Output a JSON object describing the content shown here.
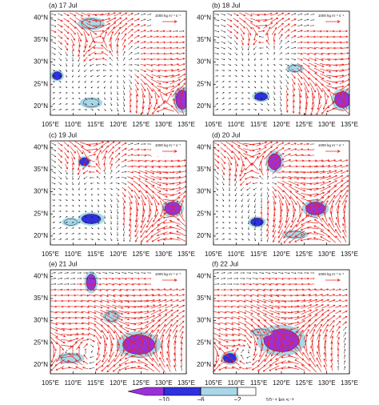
{
  "chart_data": [
    {
      "type": "vector-map",
      "title": "(a)  17 Jul",
      "reference_label": "1000 kg m⁻¹ s⁻¹",
      "xlim": [
        105,
        135
      ],
      "ylim": [
        18,
        41.5
      ],
      "xticks": [
        {
          "value": 105,
          "label": "105°E"
        },
        {
          "value": 110,
          "label": "110°E"
        },
        {
          "value": 115,
          "label": "115°E"
        },
        {
          "value": 120,
          "label": "120°E"
        },
        {
          "value": 125,
          "label": "125°E"
        },
        {
          "value": 130,
          "label": "130°E"
        },
        {
          "value": 135,
          "label": "135°E"
        }
      ],
      "yticks": [
        {
          "value": 20,
          "label": "20°N"
        },
        {
          "value": 25,
          "label": "25°N"
        },
        {
          "value": 30,
          "label": "30°N"
        },
        {
          "value": 35,
          "label": "35°N"
        },
        {
          "value": 40,
          "label": "40°N"
        }
      ]
    },
    {
      "type": "vector-map",
      "title": "(b)  18 Jul",
      "reference_label": "1000 kg m⁻¹ s⁻¹",
      "xlim": [
        105,
        135
      ],
      "ylim": [
        18,
        41.5
      ],
      "xticks": [
        {
          "value": 105,
          "label": "105°E"
        },
        {
          "value": 110,
          "label": "110°E"
        },
        {
          "value": 115,
          "label": "115°E"
        },
        {
          "value": 120,
          "label": "120°E"
        },
        {
          "value": 125,
          "label": "125°E"
        },
        {
          "value": 130,
          "label": "130°E"
        },
        {
          "value": 135,
          "label": "135°E"
        }
      ],
      "yticks": [
        {
          "value": 20,
          "label": "20°N"
        },
        {
          "value": 25,
          "label": "25°N"
        },
        {
          "value": 30,
          "label": "30°N"
        },
        {
          "value": 35,
          "label": "35°N"
        },
        {
          "value": 40,
          "label": "40°N"
        }
      ]
    },
    {
      "type": "vector-map",
      "title": "(c)  19 Jul",
      "reference_label": "1000 kg m⁻¹ s⁻¹",
      "xlim": [
        105,
        135
      ],
      "ylim": [
        18,
        41.5
      ],
      "xticks": [
        {
          "value": 105,
          "label": "105°E"
        },
        {
          "value": 110,
          "label": "110°E"
        },
        {
          "value": 115,
          "label": "115°E"
        },
        {
          "value": 120,
          "label": "120°E"
        },
        {
          "value": 125,
          "label": "125°E"
        },
        {
          "value": 130,
          "label": "130°E"
        },
        {
          "value": 135,
          "label": "135°E"
        }
      ],
      "yticks": [
        {
          "value": 20,
          "label": "20°N"
        },
        {
          "value": 25,
          "label": "25°N"
        },
        {
          "value": 30,
          "label": "30°N"
        },
        {
          "value": 35,
          "label": "35°N"
        },
        {
          "value": 40,
          "label": "40°N"
        }
      ]
    },
    {
      "type": "vector-map",
      "title": "(d)  20 Jul",
      "reference_label": "1000 kg m⁻¹ s⁻¹",
      "xlim": [
        105,
        135
      ],
      "ylim": [
        18,
        41.5
      ],
      "xticks": [
        {
          "value": 105,
          "label": "105°E"
        },
        {
          "value": 110,
          "label": "110°E"
        },
        {
          "value": 115,
          "label": "115°E"
        },
        {
          "value": 120,
          "label": "120°E"
        },
        {
          "value": 125,
          "label": "125°E"
        },
        {
          "value": 130,
          "label": "130°E"
        },
        {
          "value": 135,
          "label": "135°E"
        }
      ],
      "yticks": [
        {
          "value": 20,
          "label": "20°N"
        },
        {
          "value": 25,
          "label": "25°N"
        },
        {
          "value": 30,
          "label": "30°N"
        },
        {
          "value": 35,
          "label": "35°N"
        },
        {
          "value": 40,
          "label": "40°N"
        }
      ]
    },
    {
      "type": "vector-map",
      "title": "(e)  21 Jul",
      "reference_label": "1000 kg m⁻¹ s⁻¹",
      "xlim": [
        105,
        135
      ],
      "ylim": [
        18,
        41.5
      ],
      "xticks": [
        {
          "value": 105,
          "label": "105°E"
        },
        {
          "value": 110,
          "label": "110°E"
        },
        {
          "value": 115,
          "label": "115°E"
        },
        {
          "value": 120,
          "label": "120°E"
        },
        {
          "value": 125,
          "label": "125°E"
        },
        {
          "value": 130,
          "label": "130°E"
        },
        {
          "value": 135,
          "label": "135°E"
        }
      ],
      "yticks": [
        {
          "value": 20,
          "label": "20°N"
        },
        {
          "value": 25,
          "label": "25°N"
        },
        {
          "value": 30,
          "label": "30°N"
        },
        {
          "value": 35,
          "label": "35°N"
        },
        {
          "value": 40,
          "label": "40°N"
        }
      ]
    },
    {
      "type": "vector-map",
      "title": "(f)  22 Jul",
      "reference_label": "1000 kg m⁻¹ s⁻¹",
      "xlim": [
        105,
        135
      ],
      "ylim": [
        18,
        41.5
      ],
      "xticks": [
        {
          "value": 105,
          "label": "105°E"
        },
        {
          "value": 110,
          "label": "110°E"
        },
        {
          "value": 115,
          "label": "115°E"
        },
        {
          "value": 120,
          "label": "120°E"
        },
        {
          "value": 125,
          "label": "125°E"
        },
        {
          "value": 130,
          "label": "130°E"
        },
        {
          "value": 135,
          "label": "135°E"
        }
      ],
      "yticks": [
        {
          "value": 20,
          "label": "20°N"
        },
        {
          "value": 25,
          "label": "25°N"
        },
        {
          "value": 30,
          "label": "30°N"
        },
        {
          "value": 35,
          "label": "35°N"
        },
        {
          "value": 40,
          "label": "40°N"
        }
      ]
    },
    {
      "type": "colorbar",
      "label": "10⁻⁴ kg s⁻¹",
      "xlim": [
        -12,
        0
      ],
      "bounds": [
        -10,
        -6,
        -2
      ],
      "colors": [
        "#9b30d9",
        "#3030e0",
        "#a8d8e8",
        "#ffffff"
      ],
      "xticks": [
        {
          "value": -10,
          "label": "−10"
        },
        {
          "value": -6,
          "label": "−6"
        },
        {
          "value": -2,
          "label": "−2"
        }
      ]
    }
  ]
}
